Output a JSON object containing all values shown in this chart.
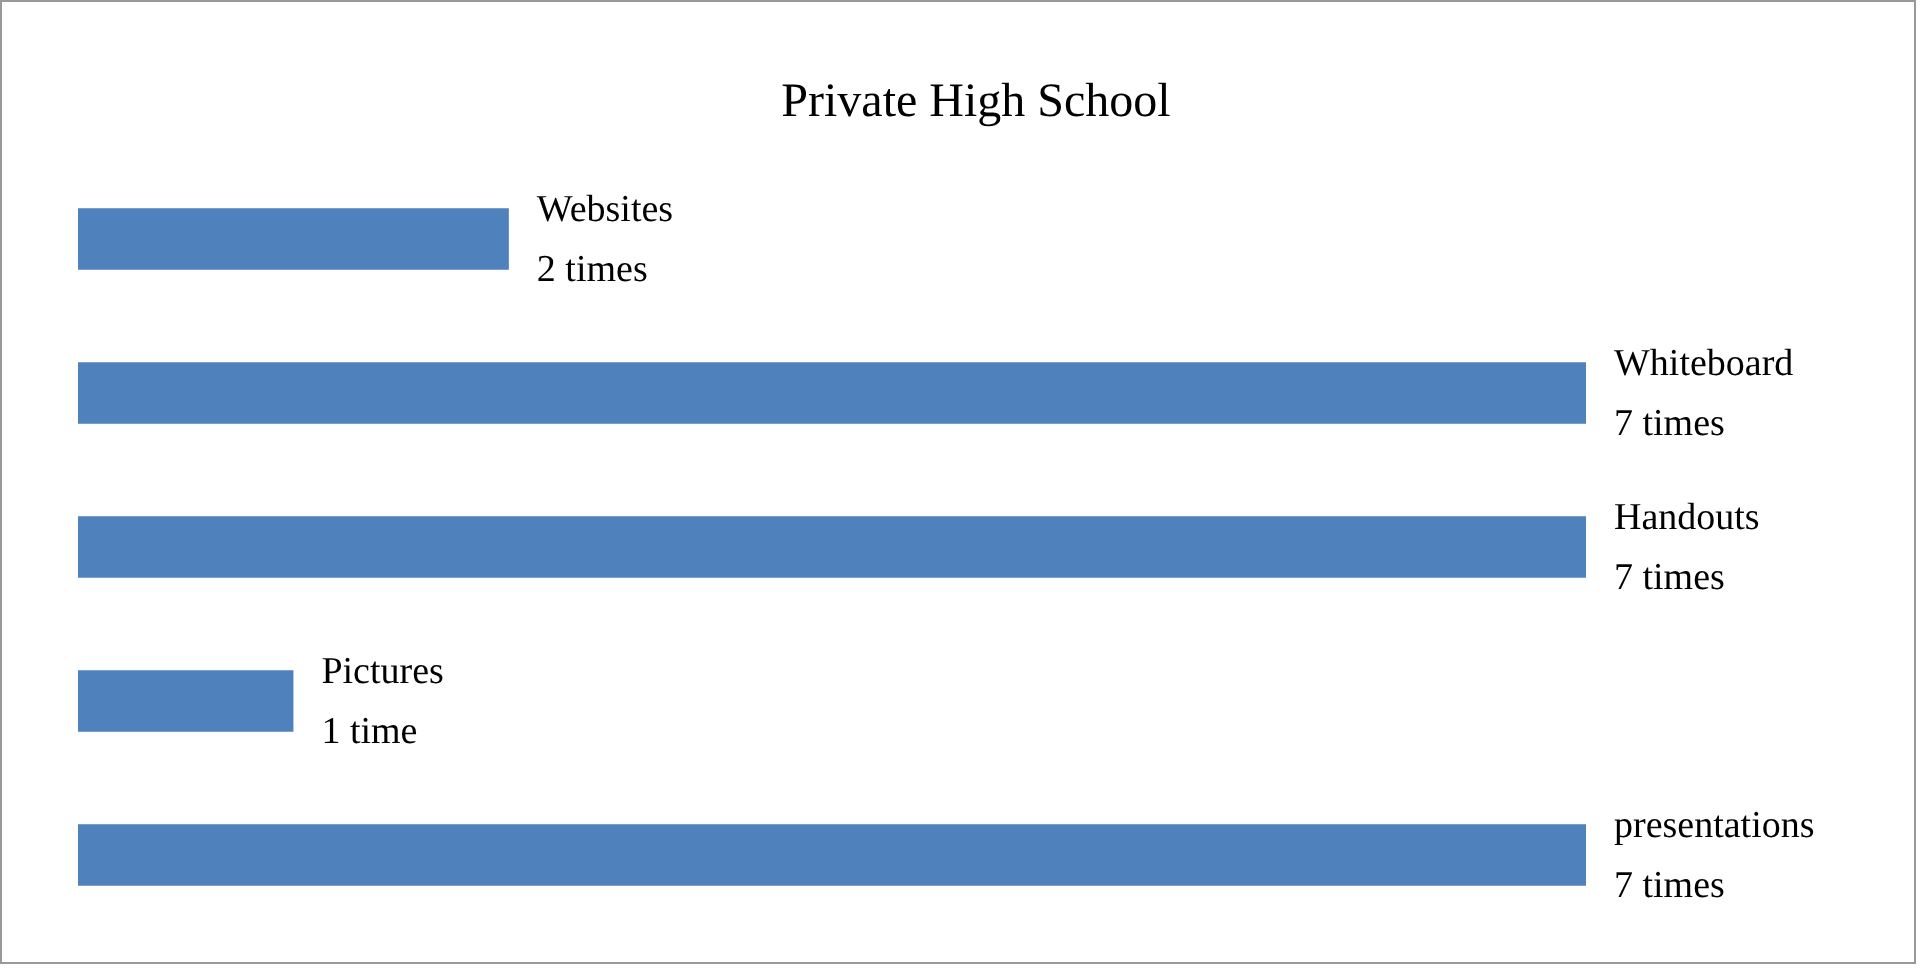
{
  "chart_data": {
    "type": "bar",
    "orientation": "horizontal",
    "title": "Private High School",
    "categories": [
      "Websites",
      "Whiteboard",
      "Handouts",
      "Pictures",
      "presentations"
    ],
    "values": [
      2,
      7,
      7,
      1,
      7
    ],
    "value_labels": [
      "2 times",
      "7 times",
      "7 times",
      "1 time",
      "7 times"
    ],
    "color": "#4f81bd"
  }
}
